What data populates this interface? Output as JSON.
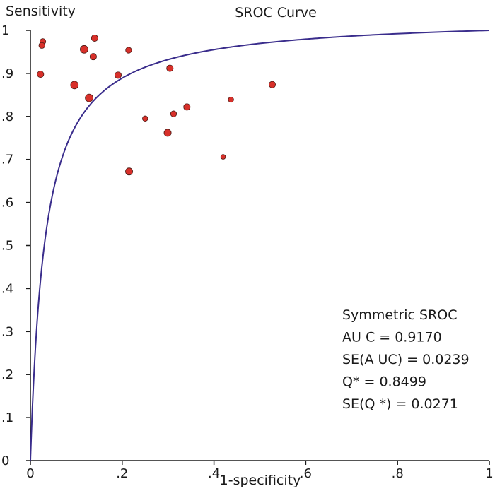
{
  "chart_data": {
    "type": "scatter",
    "title": "SROC Curve",
    "xlabel": "1-specificity",
    "ylabel": "Sensitivity",
    "xlim": [
      0,
      1
    ],
    "ylim": [
      0,
      1
    ],
    "grid": false,
    "x_ticks": [
      {
        "value": 0,
        "label": "0"
      },
      {
        "value": 0.2,
        "label": ".2"
      },
      {
        "value": 0.4,
        "label": ".4"
      },
      {
        "value": 0.6,
        "label": ".6"
      },
      {
        "value": 0.8,
        "label": ".8"
      },
      {
        "value": 1,
        "label": "1"
      }
    ],
    "y_ticks": [
      {
        "value": 0,
        "label": "0"
      },
      {
        "value": 0.1,
        "label": ".1"
      },
      {
        "value": 0.2,
        "label": ".2"
      },
      {
        "value": 0.3,
        "label": ".3"
      },
      {
        "value": 0.4,
        "label": ".4"
      },
      {
        "value": 0.5,
        "label": ".5"
      },
      {
        "value": 0.6,
        "label": ".6"
      },
      {
        "value": 0.7,
        "label": ".7"
      },
      {
        "value": 0.8,
        "label": ".8"
      },
      {
        "value": 0.9,
        "label": ".9"
      },
      {
        "value": 1,
        "label": "1"
      }
    ],
    "points": [
      {
        "x": 0.027,
        "y": 0.974,
        "w": 1
      },
      {
        "x": 0.025,
        "y": 0.965,
        "w": 1
      },
      {
        "x": 0.022,
        "y": 0.898,
        "w": 1.1
      },
      {
        "x": 0.14,
        "y": 0.982,
        "w": 1.1
      },
      {
        "x": 0.117,
        "y": 0.956,
        "w": 1.3
      },
      {
        "x": 0.137,
        "y": 0.939,
        "w": 1.1
      },
      {
        "x": 0.214,
        "y": 0.954,
        "w": 1
      },
      {
        "x": 0.096,
        "y": 0.873,
        "w": 1.3
      },
      {
        "x": 0.191,
        "y": 0.896,
        "w": 1.1
      },
      {
        "x": 0.128,
        "y": 0.843,
        "w": 1.3
      },
      {
        "x": 0.304,
        "y": 0.912,
        "w": 1.1
      },
      {
        "x": 0.527,
        "y": 0.874,
        "w": 1.1
      },
      {
        "x": 0.25,
        "y": 0.795,
        "w": 0.9
      },
      {
        "x": 0.312,
        "y": 0.806,
        "w": 1
      },
      {
        "x": 0.341,
        "y": 0.822,
        "w": 1.1
      },
      {
        "x": 0.437,
        "y": 0.839,
        "w": 0.9
      },
      {
        "x": 0.299,
        "y": 0.762,
        "w": 1.2
      },
      {
        "x": 0.42,
        "y": 0.706,
        "w": 0.8
      },
      {
        "x": 0.215,
        "y": 0.672,
        "w": 1.2
      }
    ],
    "curve": {
      "type": "symmetric-sroc",
      "q_star": 0.8499,
      "color": "#3a2d8c"
    },
    "point_color": "#d8302a",
    "annotation_lines": [
      "Symmetric SROC",
      "AU C = 0.9170",
      "SE(A UC)  = 0.0239",
      "Q* = 0.8499",
      "SE(Q *) = 0.0271"
    ]
  }
}
